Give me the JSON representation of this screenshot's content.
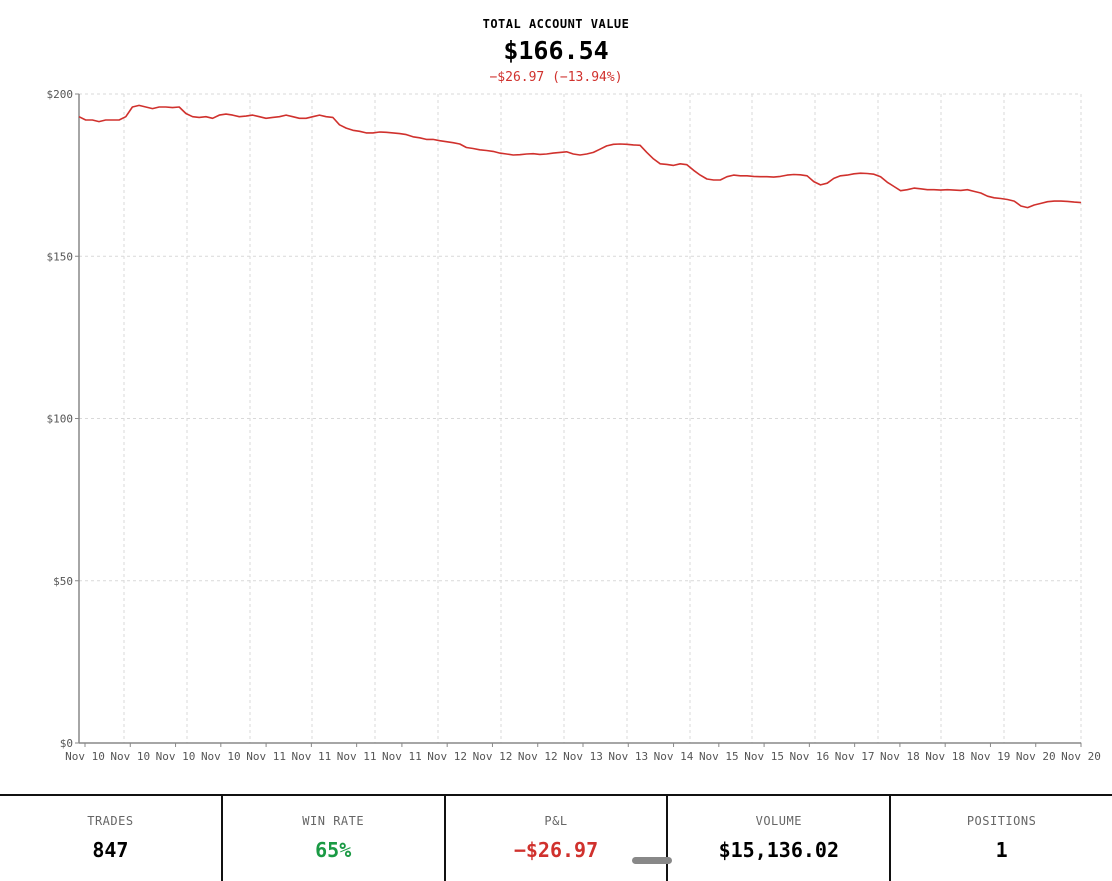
{
  "header": {
    "title": "TOTAL ACCOUNT VALUE",
    "value": "$166.54",
    "change": "−$26.97 (−13.94%)"
  },
  "colors": {
    "line": "#d0312d",
    "negative": "#d0312d",
    "positive": "#1a9a44",
    "grid": "#d9d9d9",
    "axis": "#888888"
  },
  "chart_data": {
    "type": "line",
    "title": "TOTAL ACCOUNT VALUE",
    "xlabel": "",
    "ylabel": "",
    "ylim": [
      0,
      200
    ],
    "ytick_labels": [
      "$0",
      "$50",
      "$100",
      "$150",
      "$200"
    ],
    "ytick_values": [
      0,
      50,
      100,
      150,
      200
    ],
    "xtick_labels": [
      "Nov 10",
      "Nov 10",
      "Nov 10",
      "Nov 10",
      "Nov 11",
      "Nov 11",
      "Nov 11",
      "Nov 11",
      "Nov 12",
      "Nov 12",
      "Nov 12",
      "Nov 13",
      "Nov 13",
      "Nov 14",
      "Nov 15",
      "Nov 15",
      "Nov 16",
      "Nov 17",
      "Nov 18",
      "Nov 18",
      "Nov 19",
      "Nov 20",
      "Nov 20"
    ],
    "grid": true,
    "series": [
      {
        "values": [
          193,
          192,
          192,
          191.5,
          192,
          192,
          192,
          193,
          196,
          196.5,
          196,
          195.5,
          196,
          196,
          195.8,
          196,
          194,
          193,
          192.8,
          193,
          192.5,
          193.5,
          193.8,
          193.5,
          193,
          193.2,
          193.5,
          193,
          192.5,
          192.8,
          193,
          193.5,
          193,
          192.5,
          192.5,
          193,
          193.5,
          193,
          192.8,
          190.5,
          189.5,
          188.8,
          188.5,
          188,
          188,
          188.3,
          188.2,
          188,
          187.8,
          187.5,
          186.8,
          186.5,
          186,
          186,
          185.6,
          185.3,
          185,
          184.6,
          183.5,
          183.2,
          182.8,
          182.6,
          182.3,
          181.8,
          181.5,
          181.2,
          181.3,
          181.5,
          181.6,
          181.4,
          181.5,
          181.8,
          182,
          182.2,
          181.5,
          181.2,
          181.5,
          182,
          183,
          184,
          184.5,
          184.6,
          184.5,
          184.3,
          184.2,
          182,
          180,
          178.5,
          178.3,
          178,
          178.5,
          178.2,
          176.5,
          175,
          173.8,
          173.5,
          173.5,
          174.5,
          175,
          174.8,
          174.8,
          174.6,
          174.5,
          174.5,
          174.4,
          174.6,
          175,
          175.2,
          175.1,
          174.8,
          173,
          172,
          172.5,
          174,
          174.8,
          175,
          175.4,
          175.6,
          175.5,
          175.3,
          174.5,
          172.8,
          171.5,
          170.2,
          170.5,
          171,
          170.8,
          170.5,
          170.5,
          170.4,
          170.5,
          170.4,
          170.3,
          170.5,
          170,
          169.5,
          168.5,
          168,
          167.8,
          167.5,
          167,
          165.5,
          165,
          165.8,
          166.3,
          166.8,
          167,
          167,
          166.9,
          166.7,
          166.54
        ]
      }
    ]
  },
  "stats": [
    {
      "label": "TRADES",
      "value": "847",
      "tone": "neutral"
    },
    {
      "label": "WIN RATE",
      "value": "65%",
      "tone": "positive"
    },
    {
      "label": "P&L",
      "value": "−$26.97",
      "tone": "negative"
    },
    {
      "label": "VOLUME",
      "value": "$15,136.02",
      "tone": "neutral"
    },
    {
      "label": "POSITIONS",
      "value": "1",
      "tone": "neutral"
    }
  ]
}
